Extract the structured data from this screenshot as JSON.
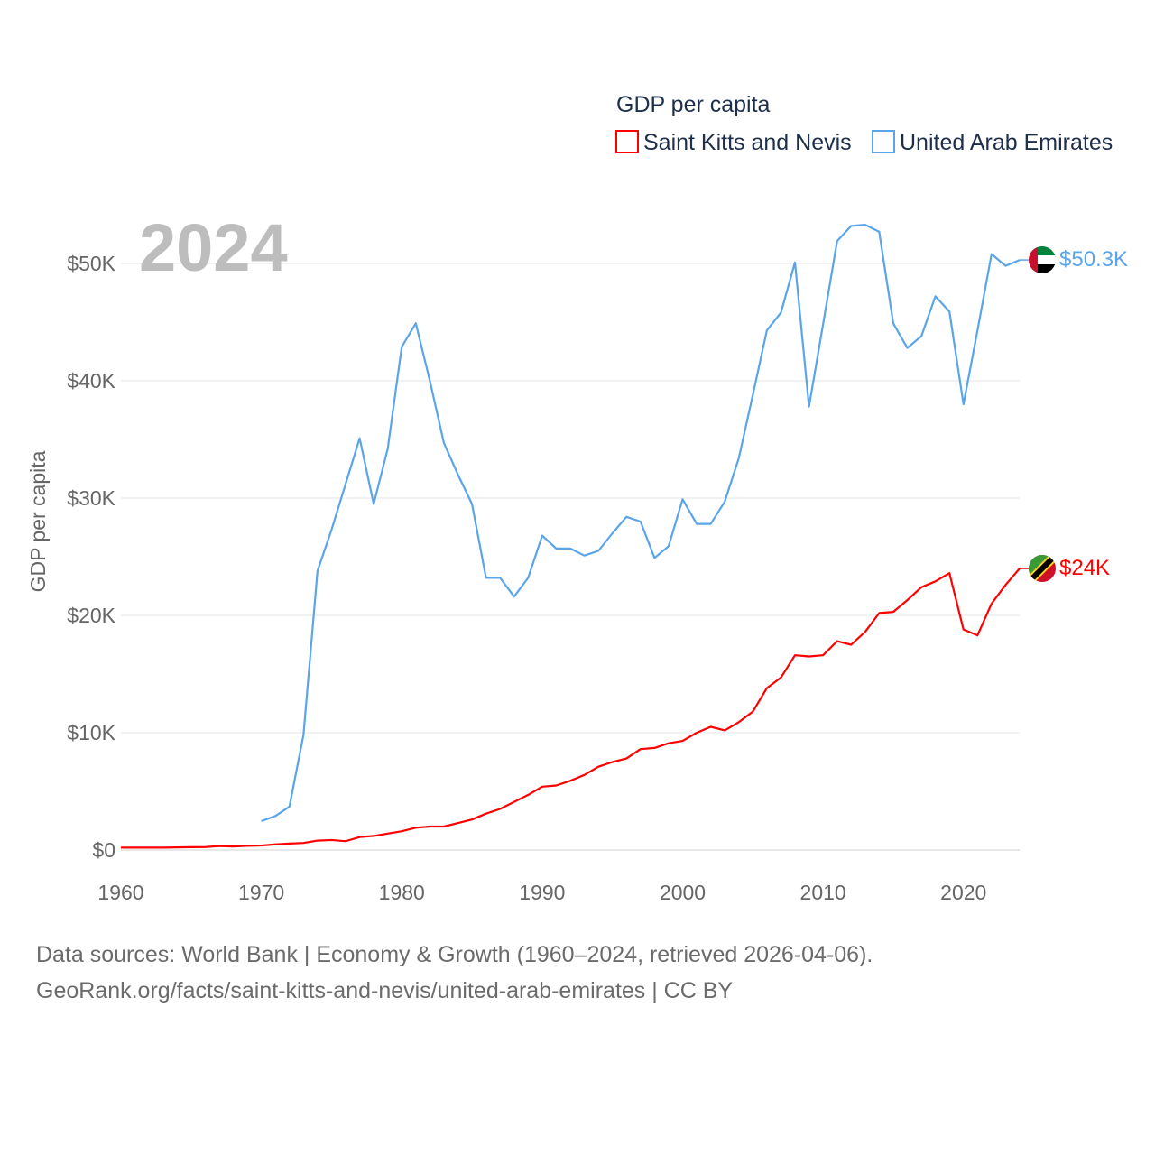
{
  "legend": {
    "title": "GDP per capita",
    "items": [
      {
        "label": "Saint Kitts and Nevis",
        "color": "#ff0000"
      },
      {
        "label": "United Arab Emirates",
        "color": "#5aa5ea"
      }
    ]
  },
  "year_watermark": "2024",
  "footer": {
    "line1": "Data sources: World Bank | Economy & Growth (1960–2024, retrieved 2026-04-06).",
    "line2": "GeoRank.org/facts/saint-kitts-and-nevis/united-arab-emirates | CC BY"
  },
  "chart_data": {
    "type": "line",
    "title": "GDP per capita",
    "xlabel": "",
    "ylabel": "GDP per capita",
    "xlim": [
      1960,
      2024
    ],
    "ylim": [
      0,
      55
    ],
    "x_ticks": [
      1960,
      1970,
      1980,
      1990,
      2000,
      2010,
      2020
    ],
    "y_ticks": [
      {
        "v": 0,
        "label": "$0"
      },
      {
        "v": 10,
        "label": "$10K"
      },
      {
        "v": 20,
        "label": "$20K"
      },
      {
        "v": 30,
        "label": "$30K"
      },
      {
        "v": 40,
        "label": "$40K"
      },
      {
        "v": 50,
        "label": "$50K"
      }
    ],
    "units": "thousand USD",
    "grid": true,
    "legend_position": "top-right",
    "series": [
      {
        "name": "Saint Kitts and Nevis",
        "color": "#ff0000",
        "end_label": "$24K",
        "start_year": 1960,
        "values": [
          0.2,
          0.2,
          0.2,
          0.2,
          0.22,
          0.24,
          0.25,
          0.33,
          0.3,
          0.35,
          0.38,
          0.48,
          0.55,
          0.6,
          0.8,
          0.85,
          0.75,
          1.1,
          1.2,
          1.4,
          1.6,
          1.9,
          2.0,
          2.0,
          2.3,
          2.6,
          3.1,
          3.5,
          4.1,
          4.7,
          5.4,
          5.5,
          5.9,
          6.4,
          7.1,
          7.5,
          7.8,
          8.6,
          8.7,
          9.1,
          9.3,
          10.0,
          10.5,
          10.2,
          10.9,
          11.8,
          13.8,
          14.7,
          16.6,
          16.5,
          16.6,
          17.8,
          17.5,
          18.6,
          20.2,
          20.3,
          21.3,
          22.4,
          22.9,
          23.6,
          18.8,
          18.3,
          21.0,
          22.6,
          24.0
        ]
      },
      {
        "name": "United Arab Emirates",
        "color": "#5aa5ea",
        "end_label": "$50.3K",
        "start_year": 1970,
        "values": [
          2.46,
          2.9,
          3.7,
          9.8,
          23.8,
          27.3,
          31.2,
          35.1,
          29.5,
          34.2,
          42.9,
          44.9,
          40.0,
          34.7,
          32.0,
          29.5,
          23.2,
          23.2,
          21.6,
          23.2,
          26.8,
          25.7,
          25.7,
          25.1,
          25.5,
          27.0,
          28.4,
          28.0,
          24.9,
          25.9,
          29.9,
          27.8,
          27.8,
          29.7,
          33.4,
          38.8,
          44.3,
          45.8,
          50.1,
          37.8,
          44.8,
          51.9,
          53.2,
          53.3,
          52.7,
          44.9,
          42.8,
          43.8,
          47.2,
          45.9,
          38.0,
          44.3,
          50.8,
          49.8,
          50.3
        ]
      }
    ]
  }
}
